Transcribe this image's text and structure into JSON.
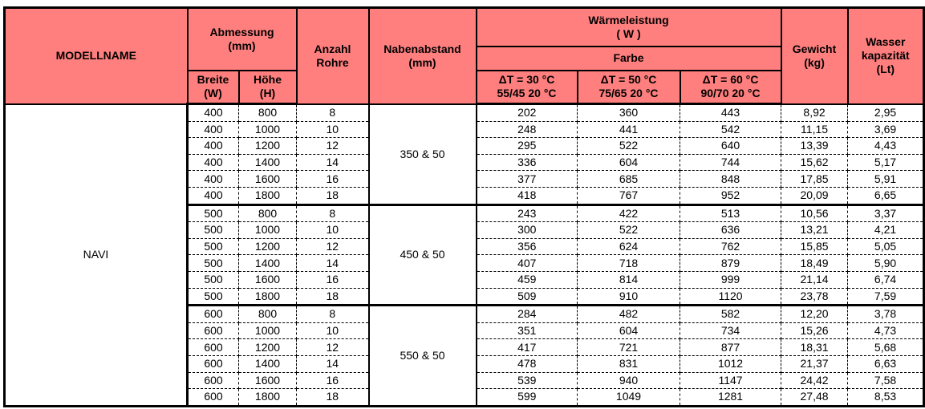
{
  "header": {
    "modellname": "MODELLNAME",
    "abmessung": "Abmessung",
    "abmessung_unit": "(mm)",
    "breite": "Breite",
    "breite_unit": "(W)",
    "hoehe": "Höhe",
    "hoehe_unit": "(H)",
    "anzahl": "Anzahl",
    "anzahl2": "Rohre",
    "nabenabstand": "Nabenabstand",
    "nabenabstand_unit": "(mm)",
    "waermeleistung": "Wärmeleistung",
    "waermeleistung_unit": "( W )",
    "farbe": "Farbe",
    "dt30": "ΔT = 30 °C",
    "dt30_sub": "55/45   20 °C",
    "dt50": "ΔT = 50 °C",
    "dt50_sub": "75/65  20 °C",
    "dt60": "ΔT = 60 °C",
    "dt60_sub": "90/70   20 °C",
    "gewicht": "Gewicht",
    "gewicht_unit": "(kg)",
    "wasser": "Wasser",
    "wasser2": "kapazität",
    "wasser_unit": "(Lt)",
    "header_color": "#FF7F7F"
  },
  "model": "NAVI",
  "groups": [
    {
      "nabenabstand": "350 & 50",
      "rows": [
        [
          "400",
          "800",
          "8",
          "202",
          "360",
          "443",
          "8,92",
          "2,95"
        ],
        [
          "400",
          "1000",
          "10",
          "248",
          "441",
          "542",
          "11,15",
          "3,69"
        ],
        [
          "400",
          "1200",
          "12",
          "295",
          "522",
          "640",
          "13,39",
          "4,43"
        ],
        [
          "400",
          "1400",
          "14",
          "336",
          "604",
          "744",
          "15,62",
          "5,17"
        ],
        [
          "400",
          "1600",
          "16",
          "377",
          "685",
          "848",
          "17,85",
          "5,91"
        ],
        [
          "400",
          "1800",
          "18",
          "418",
          "767",
          "952",
          "20,09",
          "6,65"
        ]
      ]
    },
    {
      "nabenabstand": "450 & 50",
      "rows": [
        [
          "500",
          "800",
          "8",
          "243",
          "422",
          "513",
          "10,56",
          "3,37"
        ],
        [
          "500",
          "1000",
          "10",
          "300",
          "522",
          "636",
          "13,21",
          "4,21"
        ],
        [
          "500",
          "1200",
          "12",
          "356",
          "624",
          "762",
          "15,85",
          "5,05"
        ],
        [
          "500",
          "1400",
          "14",
          "407",
          "718",
          "879",
          "18,49",
          "5,90"
        ],
        [
          "500",
          "1600",
          "16",
          "459",
          "814",
          "999",
          "21,14",
          "6,74"
        ],
        [
          "500",
          "1800",
          "18",
          "509",
          "910",
          "1120",
          "23,78",
          "7,59"
        ]
      ]
    },
    {
      "nabenabstand": "550 & 50",
      "rows": [
        [
          "600",
          "800",
          "8",
          "284",
          "482",
          "582",
          "12,20",
          "3,78"
        ],
        [
          "600",
          "1000",
          "10",
          "351",
          "604",
          "734",
          "15,26",
          "4,73"
        ],
        [
          "600",
          "1200",
          "12",
          "417",
          "721",
          "877",
          "18,31",
          "5,68"
        ],
        [
          "600",
          "1400",
          "14",
          "478",
          "831",
          "1012",
          "21,37",
          "6,63"
        ],
        [
          "600",
          "1600",
          "16",
          "539",
          "940",
          "1147",
          "24,42",
          "7,58"
        ],
        [
          "600",
          "1800",
          "18",
          "599",
          "1049",
          "1281",
          "27,48",
          "8,53"
        ]
      ]
    }
  ]
}
